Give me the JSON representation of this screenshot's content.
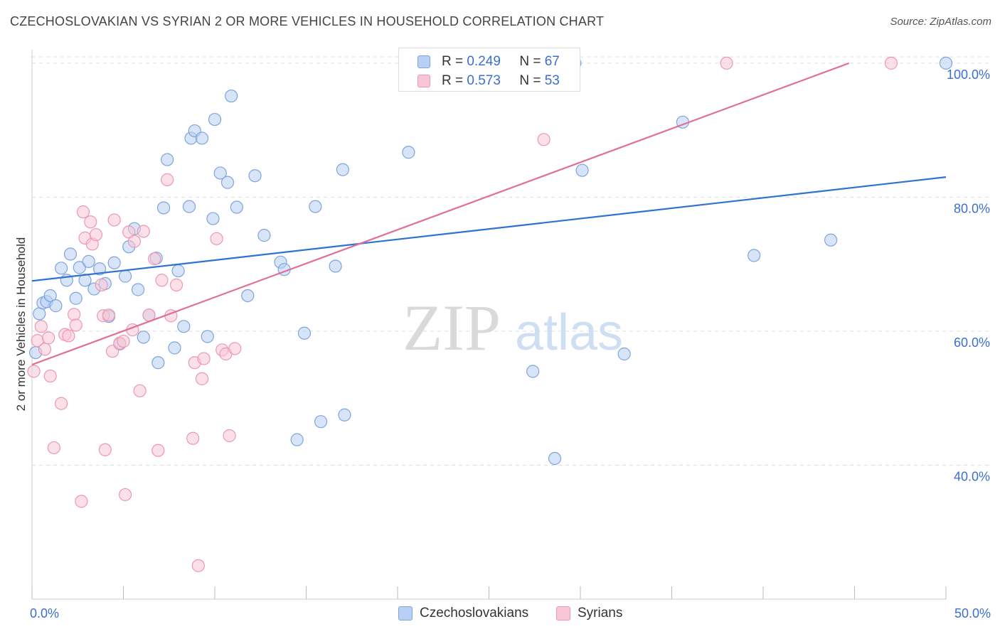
{
  "header": {
    "title": "CZECHOSLOVAKIAN VS SYRIAN 2 OR MORE VEHICLES IN HOUSEHOLD CORRELATION CHART",
    "source": "Source: ZipAtlas.com"
  },
  "watermark": {
    "zip": "ZIP",
    "atlas": "atlas"
  },
  "legend": {
    "r_label": "R =",
    "n_label": "N =",
    "series": [
      {
        "name": "Czechoslovakians",
        "r": "0.249",
        "n": "67"
      },
      {
        "name": "Syrians",
        "r": "0.573",
        "n": "53"
      }
    ]
  },
  "colors": {
    "czech_fill": "#b8d0f4",
    "czech_stroke": "#7ea4dd",
    "czech_line": "#2e72d2",
    "syrian_fill": "#f9c6d6",
    "syrian_stroke": "#ec97b3",
    "syrian_line": "#e06f98",
    "tick_label": "#3a6fd0",
    "grid": "#dddddd"
  },
  "chart_data": {
    "type": "scatter",
    "title": "CZECHOSLOVAKIAN VS SYRIAN 2 OR MORE VEHICLES IN HOUSEHOLD CORRELATION CHART",
    "xlabel": "",
    "ylabel": "2 or more Vehicles in Household",
    "xlim": [
      0,
      50
    ],
    "ylim": [
      20,
      102
    ],
    "x_tick_labels": [
      {
        "value": 0,
        "label": "0.0%"
      },
      {
        "value": 50,
        "label": "50.0%"
      }
    ],
    "y_tick_labels": [
      {
        "value": 40,
        "label": "40.0%"
      },
      {
        "value": 60,
        "label": "60.0%"
      },
      {
        "value": 80,
        "label": "80.0%"
      },
      {
        "value": 100,
        "label": "100.0%"
      }
    ],
    "grid": true,
    "legend_position": "top-center",
    "series": [
      {
        "name": "Czechoslovakians",
        "trend": {
          "x": [
            0,
            50
          ],
          "y": [
            67.5,
            83.0
          ]
        },
        "points": [
          [
            0.2,
            56.8
          ],
          [
            0.4,
            62.6
          ],
          [
            0.6,
            64.2
          ],
          [
            0.8,
            64.4
          ],
          [
            1.0,
            65.3
          ],
          [
            1.3,
            63.8
          ],
          [
            1.6,
            69.4
          ],
          [
            1.9,
            67.6
          ],
          [
            2.1,
            71.5
          ],
          [
            2.4,
            64.9
          ],
          [
            2.6,
            69.5
          ],
          [
            2.9,
            67.6
          ],
          [
            3.1,
            70.4
          ],
          [
            3.4,
            66.3
          ],
          [
            3.7,
            69.3
          ],
          [
            4.0,
            67.1
          ],
          [
            4.2,
            62.2
          ],
          [
            4.5,
            70.2
          ],
          [
            4.8,
            58.1
          ],
          [
            5.1,
            68.2
          ],
          [
            5.3,
            72.6
          ],
          [
            5.6,
            75.3
          ],
          [
            5.8,
            66.2
          ],
          [
            6.1,
            59.1
          ],
          [
            6.4,
            62.4
          ],
          [
            6.8,
            70.9
          ],
          [
            6.9,
            55.3
          ],
          [
            7.2,
            78.4
          ],
          [
            7.4,
            85.6
          ],
          [
            7.8,
            57.5
          ],
          [
            8.0,
            69.0
          ],
          [
            8.3,
            60.7
          ],
          [
            8.6,
            78.6
          ],
          [
            8.7,
            88.8
          ],
          [
            8.9,
            89.9
          ],
          [
            9.3,
            88.8
          ],
          [
            9.6,
            59.2
          ],
          [
            9.9,
            76.8
          ],
          [
            10.0,
            91.6
          ],
          [
            10.3,
            83.6
          ],
          [
            10.7,
            82.2
          ],
          [
            10.9,
            95.1
          ],
          [
            11.2,
            78.5
          ],
          [
            11.8,
            65.3
          ],
          [
            12.2,
            83.2
          ],
          [
            12.7,
            74.3
          ],
          [
            13.6,
            70.3
          ],
          [
            13.8,
            69.2
          ],
          [
            14.5,
            43.8
          ],
          [
            14.9,
            59.7
          ],
          [
            15.5,
            78.6
          ],
          [
            15.8,
            46.5
          ],
          [
            16.6,
            69.7
          ],
          [
            17.0,
            84.1
          ],
          [
            17.1,
            47.5
          ],
          [
            20.6,
            86.7
          ],
          [
            23.0,
            100.0
          ],
          [
            24.8,
            100.0
          ],
          [
            27.4,
            54.0
          ],
          [
            28.6,
            41.0
          ],
          [
            29.7,
            100.0
          ],
          [
            30.1,
            84.0
          ],
          [
            32.4,
            56.6
          ],
          [
            35.6,
            91.2
          ],
          [
            39.5,
            71.3
          ],
          [
            43.7,
            73.6
          ],
          [
            50.0,
            100.0
          ]
        ]
      },
      {
        "name": "Syrians",
        "trend": {
          "x": [
            0,
            44.7
          ],
          "y": [
            55.0,
            100.0
          ]
        },
        "points": [
          [
            0.1,
            54.0
          ],
          [
            0.3,
            58.6
          ],
          [
            0.5,
            60.7
          ],
          [
            0.7,
            57.3
          ],
          [
            0.9,
            59.0
          ],
          [
            1.0,
            53.3
          ],
          [
            1.6,
            49.2
          ],
          [
            1.2,
            42.6
          ],
          [
            1.8,
            59.5
          ],
          [
            2.0,
            59.3
          ],
          [
            2.3,
            62.5
          ],
          [
            2.4,
            60.9
          ],
          [
            2.7,
            34.6
          ],
          [
            2.8,
            77.8
          ],
          [
            2.9,
            73.9
          ],
          [
            3.2,
            76.3
          ],
          [
            3.3,
            73.0
          ],
          [
            3.5,
            74.4
          ],
          [
            3.8,
            66.9
          ],
          [
            3.9,
            62.3
          ],
          [
            4.0,
            42.3
          ],
          [
            4.2,
            62.4
          ],
          [
            4.4,
            57.0
          ],
          [
            4.5,
            76.6
          ],
          [
            4.8,
            58.2
          ],
          [
            5.0,
            58.5
          ],
          [
            5.1,
            35.6
          ],
          [
            5.3,
            74.8
          ],
          [
            5.5,
            60.2
          ],
          [
            5.6,
            73.4
          ],
          [
            5.9,
            51.1
          ],
          [
            6.1,
            74.9
          ],
          [
            6.4,
            62.4
          ],
          [
            6.7,
            70.8
          ],
          [
            6.9,
            42.2
          ],
          [
            7.1,
            67.6
          ],
          [
            7.4,
            82.6
          ],
          [
            7.6,
            62.3
          ],
          [
            7.9,
            66.9
          ],
          [
            8.8,
            44.0
          ],
          [
            8.9,
            55.3
          ],
          [
            9.1,
            25.0
          ],
          [
            9.3,
            52.9
          ],
          [
            9.4,
            55.9
          ],
          [
            10.1,
            73.8
          ],
          [
            10.4,
            57.2
          ],
          [
            10.6,
            56.6
          ],
          [
            10.8,
            44.4
          ],
          [
            11.1,
            57.4
          ],
          [
            27.8,
            100.0
          ],
          [
            28.0,
            88.6
          ],
          [
            38.0,
            100.0
          ],
          [
            47.0,
            100.0
          ]
        ]
      }
    ]
  }
}
